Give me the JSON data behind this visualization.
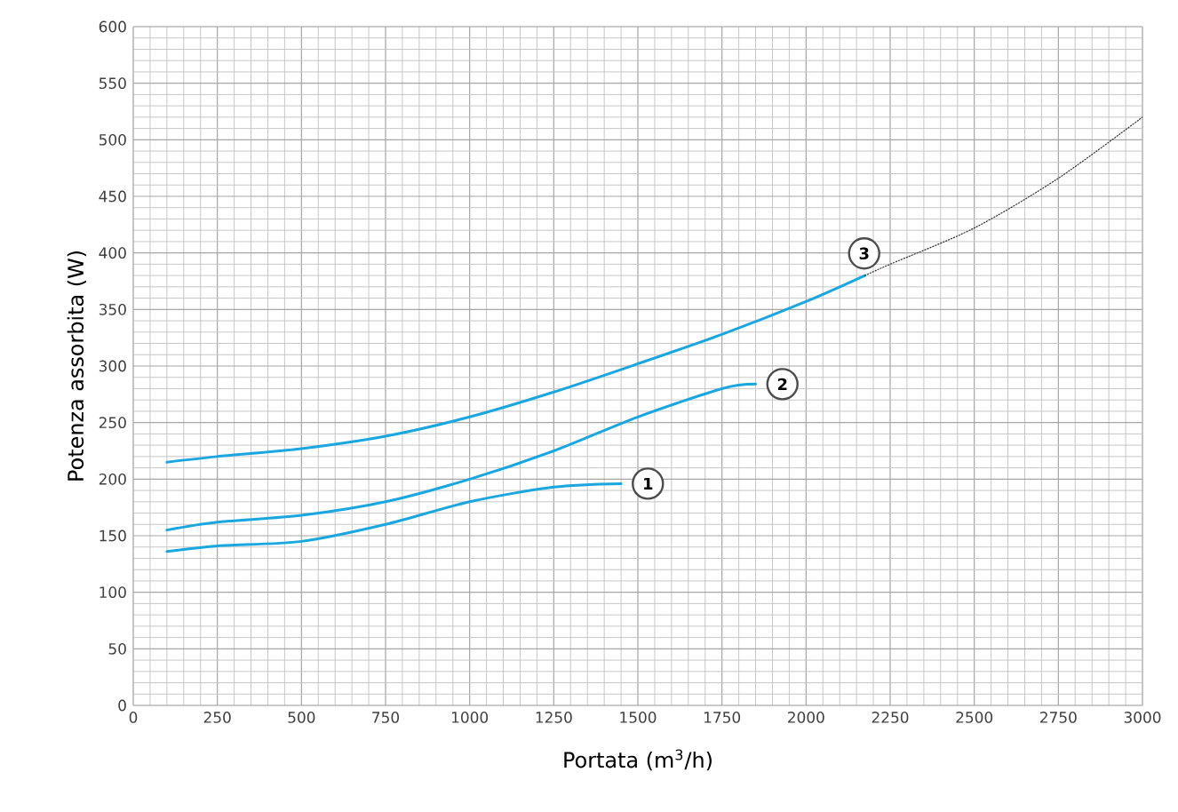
{
  "chart_data": {
    "type": "line",
    "xlabel": "Portata (m$^{3}$/h)",
    "ylabel": "Potenza assorbita (W)",
    "xlim": [
      0,
      3000
    ],
    "ylim": [
      0,
      600
    ],
    "xticks": [
      0,
      250,
      500,
      750,
      1000,
      1250,
      1500,
      1750,
      2000,
      2250,
      2500,
      2750,
      3000
    ],
    "yticks": [
      0,
      50,
      100,
      150,
      200,
      250,
      300,
      350,
      400,
      450,
      500,
      550,
      600
    ],
    "grid": true,
    "marker": "none",
    "series": [
      {
        "name": "1",
        "color": "#1aa7e0",
        "line_style": "solid",
        "x": [
          100,
          250,
          500,
          750,
          1000,
          1250,
          1450
        ],
        "values": [
          136,
          141,
          145,
          160,
          180,
          193,
          196
        ]
      },
      {
        "name": "2",
        "color": "#1aa7e0",
        "line_style": "solid",
        "x": [
          100,
          250,
          500,
          750,
          1000,
          1250,
          1500,
          1750,
          1850
        ],
        "values": [
          155,
          162,
          168,
          180,
          200,
          225,
          255,
          280,
          284
        ]
      },
      {
        "name": "3",
        "color": "#1aa7e0",
        "line_style": "solid",
        "x": [
          100,
          250,
          500,
          750,
          1000,
          1250,
          1500,
          1750,
          2000,
          2175
        ],
        "values": [
          215,
          220,
          227,
          238,
          255,
          277,
          302,
          328,
          357,
          380
        ]
      },
      {
        "color": "#333333",
        "line_style": "dotted",
        "x": [
          2175,
          2250,
          2500,
          2750,
          3000
        ],
        "values": [
          380,
          390,
          422,
          466,
          520
        ]
      }
    ]
  }
}
